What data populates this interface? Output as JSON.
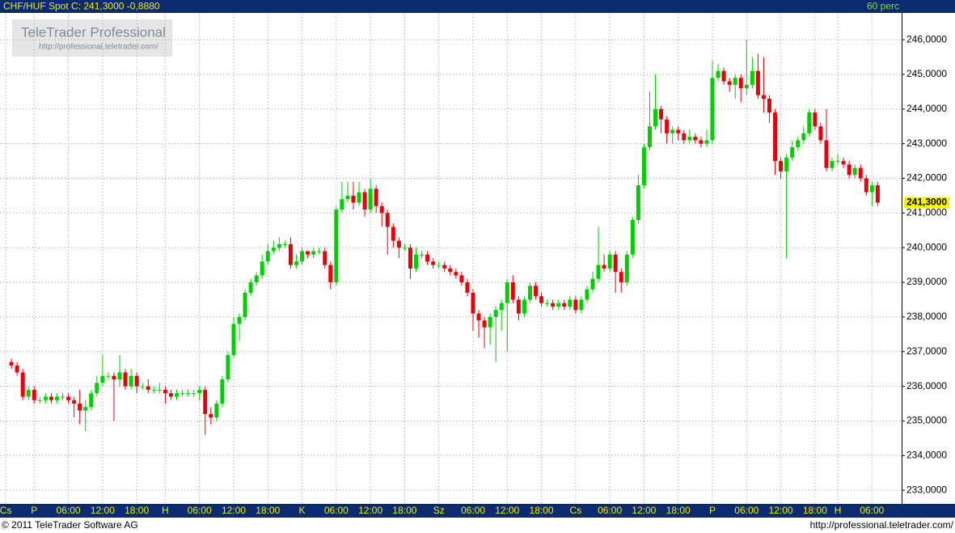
{
  "chart_data": {
    "type": "candlestick",
    "symbol": "CHF/HUF Spot",
    "close_prefix": "C:",
    "last_text": "241,3000",
    "change_text": "-0,8880",
    "interval": "60 perc",
    "watermark_title": "TeleTrader Professional",
    "watermark_url": "http://professional.teletrader.com/",
    "footer_left": "© 2011 TeleTrader Software AG",
    "footer_right": "http://professional.teletrader.com/",
    "up_color": "#00d000",
    "down_color": "#e8000b",
    "grid": true,
    "xlim": [
      -2,
      156.2
    ],
    "ylim": [
      232.63,
      246.75
    ],
    "last_marker": {
      "value": 241.3,
      "label": "241,3000"
    },
    "yticks": [
      {
        "value": 233,
        "label": "233,0000"
      },
      {
        "value": 234,
        "label": "234,0000"
      },
      {
        "value": 235,
        "label": "235,0000"
      },
      {
        "value": 236,
        "label": "236,0000"
      },
      {
        "value": 237,
        "label": "237,0000"
      },
      {
        "value": 238,
        "label": "238,0000"
      },
      {
        "value": 239,
        "label": "239,0000"
      },
      {
        "value": 240,
        "label": "240,0000"
      },
      {
        "value": 241,
        "label": "241,0000"
      },
      {
        "value": 242,
        "label": "242,0000"
      },
      {
        "value": 243,
        "label": "243,0000"
      },
      {
        "value": 244,
        "label": "244,0000"
      },
      {
        "value": 245,
        "label": "245,0000"
      },
      {
        "value": 246,
        "label": "246,0000"
      }
    ],
    "xticks": [
      {
        "value": -1,
        "label": "Cs"
      },
      {
        "value": 4,
        "label": "P"
      },
      {
        "value": 10,
        "label": "06:00"
      },
      {
        "value": 16,
        "label": "12:00"
      },
      {
        "value": 22,
        "label": "18:00"
      },
      {
        "value": 27,
        "label": "H"
      },
      {
        "value": 33,
        "label": "06:00"
      },
      {
        "value": 39,
        "label": "12:00"
      },
      {
        "value": 45,
        "label": "18:00"
      },
      {
        "value": 51,
        "label": "K"
      },
      {
        "value": 57,
        "label": "06:00"
      },
      {
        "value": 63,
        "label": "12:00"
      },
      {
        "value": 69,
        "label": "18:00"
      },
      {
        "value": 75,
        "label": "Sz"
      },
      {
        "value": 81,
        "label": "06:00"
      },
      {
        "value": 87,
        "label": "12:00"
      },
      {
        "value": 93,
        "label": "18:00"
      },
      {
        "value": 99,
        "label": "Cs"
      },
      {
        "value": 105,
        "label": "06:00"
      },
      {
        "value": 111,
        "label": "12:00"
      },
      {
        "value": 117,
        "label": "18:00"
      },
      {
        "value": 123,
        "label": "P"
      },
      {
        "value": 129,
        "label": "06:00"
      },
      {
        "value": 135,
        "label": "12:00"
      },
      {
        "value": 141,
        "label": "18:00"
      },
      {
        "value": 145,
        "label": "H"
      },
      {
        "value": 151,
        "label": "06:00"
      }
    ],
    "open": [
      236.7,
      236.6,
      236.4,
      235.7,
      235.9,
      235.6,
      235.6,
      235.7,
      235.6,
      235.7,
      235.7,
      235.6,
      235.5,
      235.3,
      235.4,
      235.8,
      236.1,
      236.3,
      236.3,
      236.2,
      236.4,
      236.0,
      236.3,
      236.0,
      236.0,
      235.9,
      235.9,
      235.9,
      235.8,
      235.7,
      235.8,
      235.8,
      235.8,
      235.8,
      235.9,
      235.2,
      235.1,
      235.5,
      236.2,
      236.9,
      237.8,
      238.0,
      238.7,
      239.0,
      239.2,
      239.6,
      239.9,
      240.0,
      240.1,
      240.1,
      239.5,
      239.6,
      239.9,
      239.8,
      239.9,
      239.9,
      239.5,
      239.0,
      241.1,
      241.4,
      241.5,
      241.3,
      241.6,
      241.1,
      241.7,
      241.2,
      241.0,
      240.6,
      240.2,
      240.0,
      240.0,
      239.4,
      239.8,
      239.8,
      239.6,
      239.5,
      239.5,
      239.4,
      239.3,
      239.2,
      239.0,
      238.7,
      238.1,
      237.9,
      237.7,
      238.0,
      238.2,
      238.4,
      239.0,
      238.5,
      238.1,
      238.5,
      238.9,
      238.6,
      238.4,
      238.4,
      238.3,
      238.4,
      238.3,
      238.5,
      238.2,
      238.5,
      238.8,
      239.1,
      239.5,
      239.4,
      239.8,
      239.3,
      239.0,
      239.8,
      240.8,
      241.8,
      242.9,
      243.5,
      244.0,
      243.7,
      243.3,
      243.4,
      243.3,
      243.1,
      243.2,
      243.1,
      243.0,
      243.1,
      244.9,
      245.1,
      244.8,
      244.7,
      244.9,
      244.6,
      244.7,
      245.1,
      244.4,
      244.3,
      243.9,
      242.5,
      242.2,
      242.6,
      242.9,
      243.1,
      243.3,
      243.9,
      243.5,
      243.1,
      242.3,
      242.5,
      242.5,
      242.4,
      242.1,
      242.3,
      242.0,
      241.6,
      241.8
    ],
    "high": [
      236.8,
      236.7,
      236.5,
      236.0,
      236.0,
      235.7,
      235.8,
      235.8,
      235.8,
      235.8,
      235.8,
      235.7,
      235.9,
      235.6,
      235.9,
      236.3,
      236.9,
      236.4,
      236.4,
      236.9,
      236.5,
      236.5,
      236.4,
      236.1,
      236.2,
      236.0,
      236.1,
      236.0,
      235.9,
      235.9,
      235.9,
      235.9,
      235.9,
      236.0,
      236.0,
      235.4,
      235.6,
      236.3,
      237.0,
      238.0,
      238.1,
      238.8,
      239.1,
      239.3,
      239.8,
      240.1,
      240.2,
      240.3,
      240.2,
      240.3,
      239.8,
      240.0,
      239.9,
      240.0,
      240.0,
      240.0,
      239.6,
      241.2,
      241.9,
      241.9,
      241.9,
      241.9,
      241.7,
      242.0,
      241.8,
      241.3,
      241.1,
      240.7,
      240.3,
      240.1,
      240.1,
      240.0,
      239.9,
      239.9,
      239.7,
      239.6,
      239.6,
      239.5,
      239.4,
      239.3,
      239.1,
      238.8,
      238.2,
      238.0,
      238.1,
      238.3,
      238.5,
      239.1,
      239.2,
      238.6,
      238.6,
      239.0,
      239.0,
      238.7,
      238.5,
      238.5,
      238.5,
      238.5,
      238.6,
      238.6,
      238.6,
      238.9,
      239.3,
      240.6,
      239.8,
      239.9,
      239.9,
      239.4,
      239.9,
      240.9,
      242.1,
      243.0,
      244.5,
      245.0,
      244.1,
      243.8,
      243.5,
      243.5,
      243.4,
      243.4,
      243.3,
      243.2,
      243.4,
      245.4,
      245.3,
      245.2,
      244.9,
      245.0,
      245.0,
      246.0,
      245.5,
      245.6,
      245.5,
      244.4,
      244.0,
      242.6,
      242.7,
      243.1,
      243.2,
      243.5,
      244.0,
      244.0,
      243.6,
      244.0,
      242.6,
      242.7,
      242.6,
      242.5,
      242.4,
      242.4,
      242.1,
      241.9,
      241.9
    ],
    "low": [
      236.5,
      236.3,
      235.6,
      235.6,
      235.5,
      235.5,
      235.5,
      235.5,
      235.5,
      235.6,
      235.5,
      235.1,
      234.9,
      234.7,
      235.3,
      235.7,
      236.0,
      236.2,
      235.0,
      236.0,
      235.9,
      235.9,
      235.8,
      235.9,
      235.8,
      235.8,
      235.8,
      235.5,
      235.6,
      235.6,
      235.7,
      235.7,
      235.7,
      235.6,
      234.6,
      234.9,
      235.0,
      235.4,
      236.1,
      236.8,
      237.3,
      237.9,
      238.6,
      238.9,
      239.1,
      239.5,
      239.8,
      239.9,
      240.0,
      239.4,
      239.4,
      239.5,
      239.7,
      239.7,
      239.8,
      239.4,
      238.8,
      238.9,
      241.0,
      241.3,
      241.1,
      241.2,
      240.9,
      241.0,
      241.0,
      240.6,
      239.8,
      240.0,
      239.7,
      239.9,
      239.1,
      239.3,
      239.7,
      239.5,
      239.4,
      239.4,
      239.3,
      239.2,
      239.1,
      238.9,
      238.6,
      237.6,
      237.4,
      237.1,
      237.2,
      236.7,
      237.6,
      237.0,
      238.4,
      237.9,
      238.0,
      238.4,
      238.5,
      238.3,
      238.3,
      238.2,
      238.2,
      238.2,
      238.2,
      238.1,
      238.1,
      238.4,
      238.7,
      239.0,
      239.3,
      239.3,
      238.7,
      238.7,
      238.9,
      239.7,
      240.7,
      241.7,
      242.8,
      243.4,
      243.3,
      243.0,
      243.0,
      243.1,
      243.0,
      243.0,
      243.0,
      242.9,
      242.9,
      243.0,
      244.8,
      244.7,
      244.5,
      244.3,
      244.2,
      244.4,
      244.6,
      244.3,
      243.9,
      243.6,
      242.1,
      242.0,
      239.7,
      242.5,
      242.8,
      243.0,
      243.2,
      243.4,
      243.0,
      242.2,
      242.2,
      242.4,
      242.3,
      242.0,
      242.0,
      241.9,
      241.5,
      241.2,
      241.2
    ],
    "close": [
      236.6,
      236.4,
      235.7,
      235.9,
      235.6,
      235.6,
      235.7,
      235.6,
      235.7,
      235.7,
      235.6,
      235.5,
      235.3,
      235.4,
      235.8,
      236.1,
      236.3,
      236.3,
      236.2,
      236.4,
      236.0,
      236.3,
      236.0,
      236.0,
      235.9,
      235.9,
      235.9,
      235.8,
      235.7,
      235.8,
      235.8,
      235.8,
      235.8,
      235.9,
      235.2,
      235.1,
      235.5,
      236.2,
      236.9,
      237.8,
      238.0,
      238.7,
      239.0,
      239.2,
      239.6,
      239.9,
      240.0,
      240.1,
      240.1,
      239.5,
      239.6,
      239.9,
      239.8,
      239.9,
      239.9,
      239.5,
      239.0,
      241.1,
      241.4,
      241.5,
      241.3,
      241.6,
      241.1,
      241.7,
      241.2,
      241.0,
      240.6,
      240.2,
      240.0,
      240.0,
      239.4,
      239.8,
      239.8,
      239.6,
      239.5,
      239.5,
      239.4,
      239.3,
      239.2,
      239.0,
      238.7,
      238.1,
      237.9,
      237.7,
      238.0,
      238.2,
      238.4,
      239.0,
      238.5,
      238.1,
      238.5,
      238.9,
      238.6,
      238.4,
      238.4,
      238.3,
      238.4,
      238.3,
      238.5,
      238.2,
      238.5,
      238.8,
      239.1,
      239.5,
      239.4,
      239.8,
      239.3,
      239.0,
      239.8,
      240.8,
      241.8,
      242.9,
      243.5,
      244.0,
      243.7,
      243.3,
      243.4,
      243.3,
      243.1,
      243.2,
      243.1,
      243.0,
      243.1,
      244.9,
      245.1,
      244.8,
      244.7,
      244.9,
      244.6,
      244.7,
      245.1,
      244.4,
      244.3,
      243.9,
      242.5,
      242.2,
      242.6,
      242.9,
      243.1,
      243.3,
      243.9,
      243.5,
      243.1,
      242.3,
      242.5,
      242.5,
      242.4,
      242.1,
      242.3,
      242.0,
      241.6,
      241.8,
      241.3
    ]
  }
}
